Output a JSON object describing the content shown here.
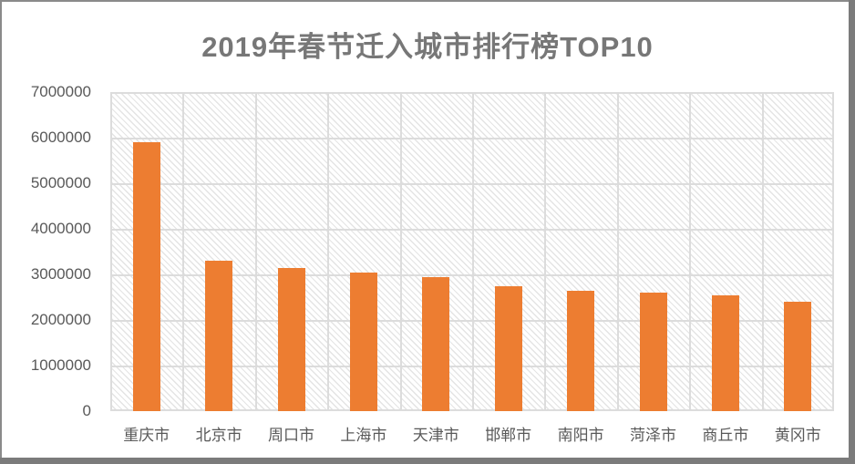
{
  "chart_data": {
    "type": "bar",
    "title": "2019年春节迁入城市排行榜TOP10",
    "categories": [
      "重庆市",
      "北京市",
      "周口市",
      "上海市",
      "天津市",
      "邯郸市",
      "南阳市",
      "菏泽市",
      "商丘市",
      "黄冈市"
    ],
    "values": [
      5900000,
      3300000,
      3150000,
      3050000,
      2950000,
      2750000,
      2650000,
      2600000,
      2550000,
      2400000
    ],
    "xlabel": "",
    "ylabel": "",
    "ylim": [
      0,
      7000000
    ],
    "ytick_step": 1000000,
    "ytick_labels": [
      "7000000",
      "6000000",
      "5000000",
      "4000000",
      "3000000",
      "2000000",
      "1000000",
      "0"
    ],
    "grid": "on",
    "legend": "none",
    "plot_background": "light diagonal hatch pattern"
  },
  "colors": {
    "bar": "#ED7D31",
    "title": "#777777",
    "axis_labels": "#595959",
    "gridline": "#dcdcdc",
    "hatch": "#e4e4e4",
    "frame_light": "#8a8a8a",
    "frame_dark": "#7b7b7b"
  }
}
